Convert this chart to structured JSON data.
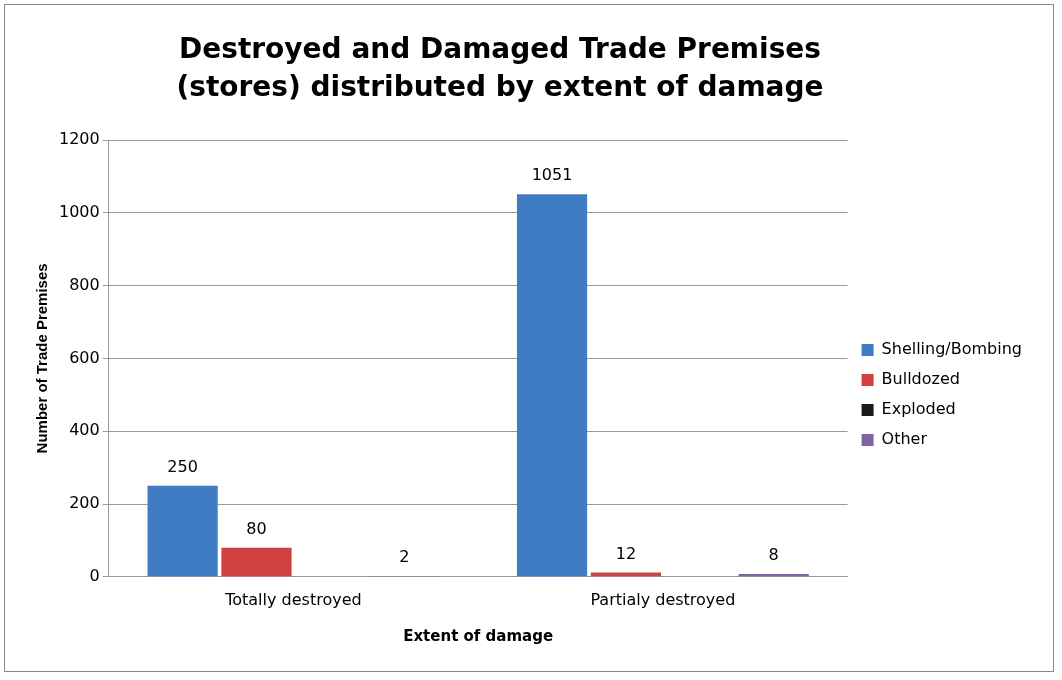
{
  "chart_data": {
    "type": "bar",
    "title": "Destroyed and Damaged Trade Premises (stores) distributed by extent of damage",
    "xlabel": "Extent of damage",
    "ylabel": "Number of Trade Premises",
    "categories": [
      "Totally destroyed",
      "Partialy destroyed"
    ],
    "series": [
      {
        "name": "Shelling/Bombing",
        "color": "#3f7cc4",
        "values": [
          250,
          1051
        ]
      },
      {
        "name": "Bulldozed",
        "color": "#d04040",
        "values": [
          80,
          12
        ]
      },
      {
        "name": "Exploded",
        "color": "#1a1a1a",
        "values": [
          null,
          null
        ]
      },
      {
        "name": "Other",
        "color": "#8064a2",
        "values": [
          2,
          8
        ]
      }
    ],
    "ylim": [
      0,
      1200
    ],
    "yticks": [
      0,
      200,
      400,
      600,
      800,
      1000,
      1200
    ],
    "grid": "y",
    "legend": "right",
    "data_labels": true
  }
}
